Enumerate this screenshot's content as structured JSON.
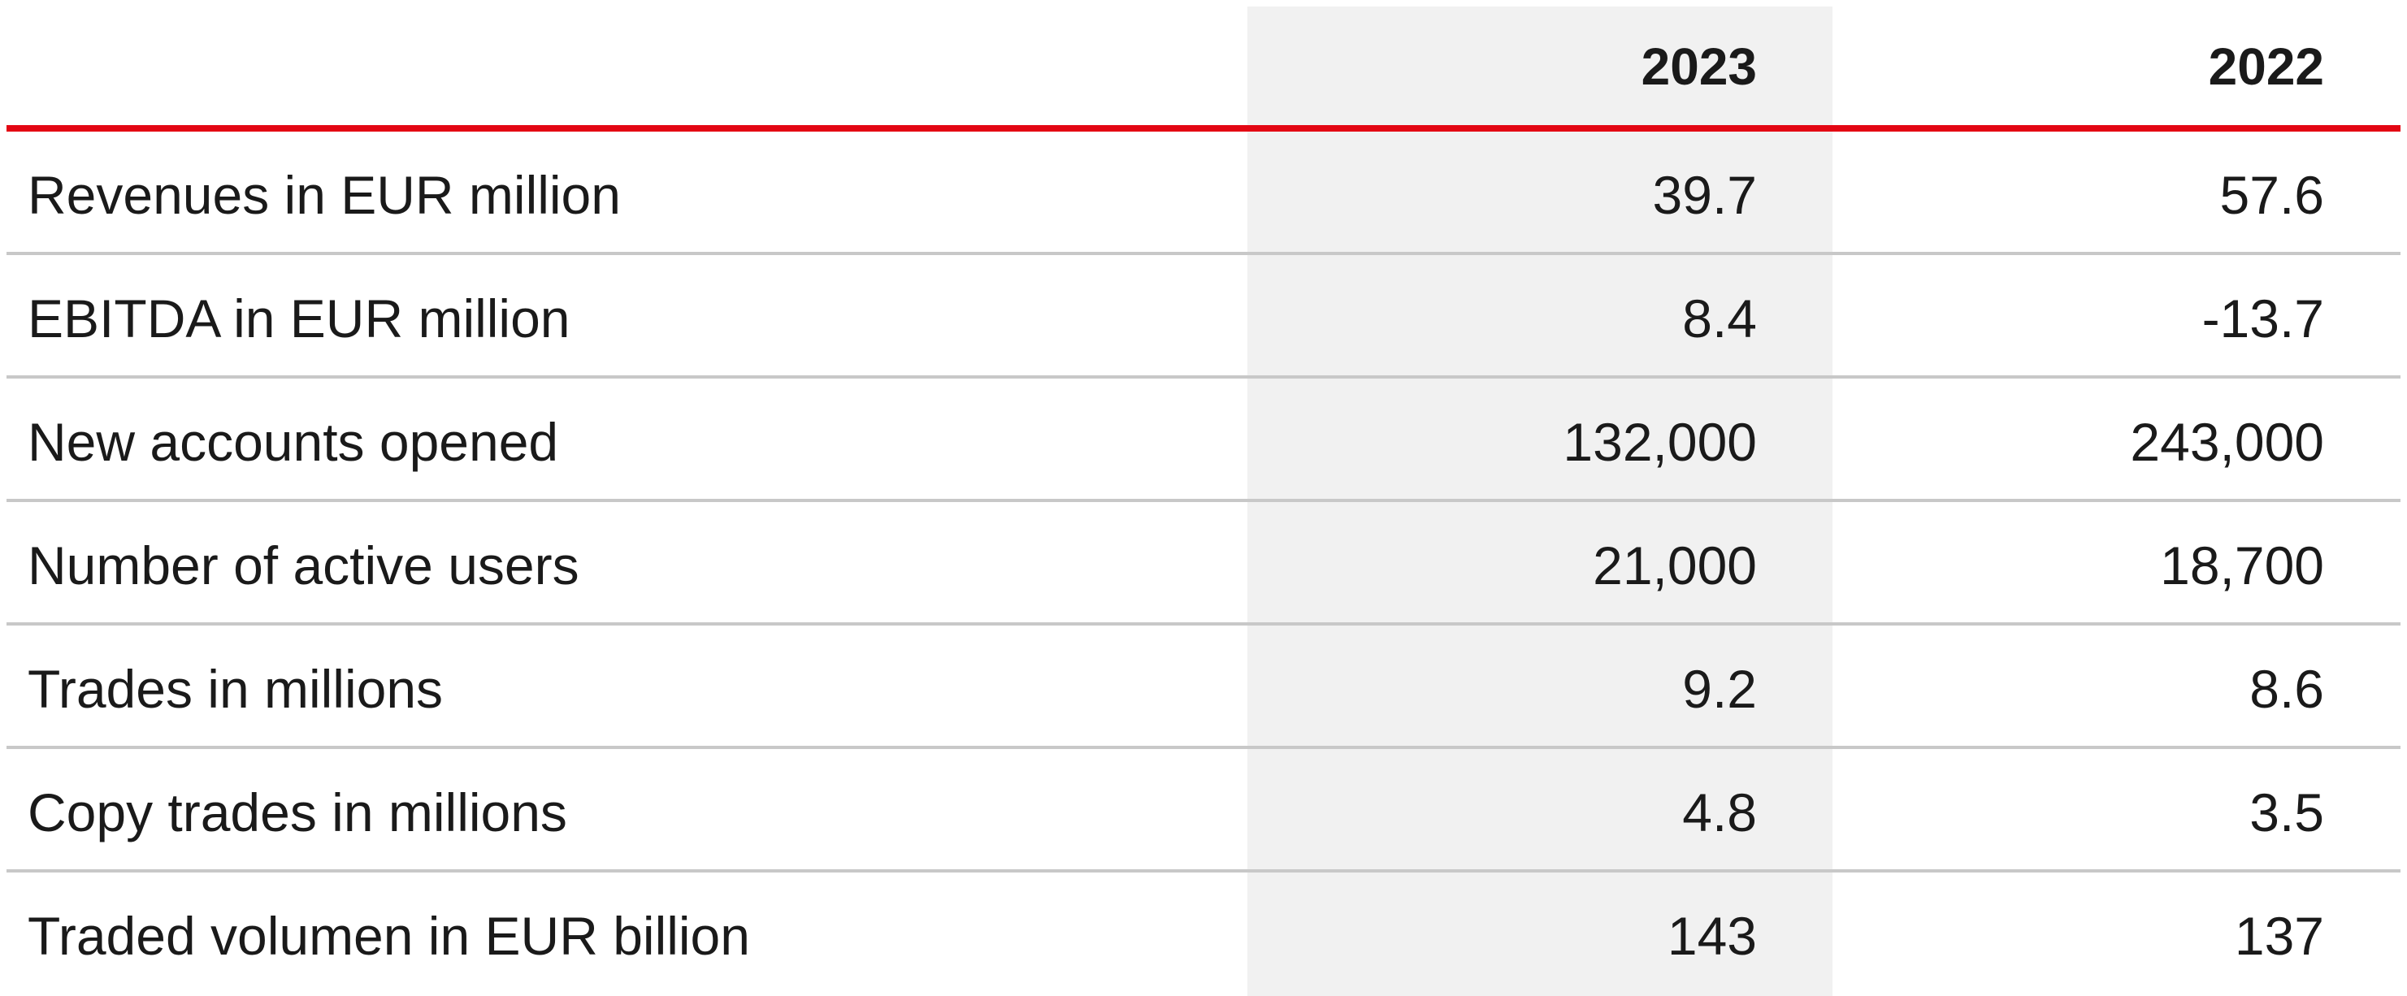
{
  "table": {
    "columns": [
      "",
      "2023",
      "2022"
    ],
    "rows": [
      {
        "label": "Revenues in EUR million",
        "v2023": "39.7",
        "v2022": "57.6"
      },
      {
        "label": "EBITDA in EUR million",
        "v2023": "8.4",
        "v2022": "-13.7"
      },
      {
        "label": "New accounts opened",
        "v2023": "132,000",
        "v2022": "243,000"
      },
      {
        "label": "Number of active users",
        "v2023": "21,000",
        "v2022": "18,700"
      },
      {
        "label": "Trades in millions",
        "v2023": "9.2",
        "v2022": "8.6"
      },
      {
        "label": "Copy trades in millions",
        "v2023": "4.8",
        "v2022": "3.5"
      },
      {
        "label": "Traded volumen in EUR billion",
        "v2023": "143",
        "v2022": "137"
      }
    ]
  },
  "colors": {
    "accent_rule": "#e30613",
    "highlight_column": "#f1f1f1",
    "row_rule": "#c8c8c8"
  }
}
